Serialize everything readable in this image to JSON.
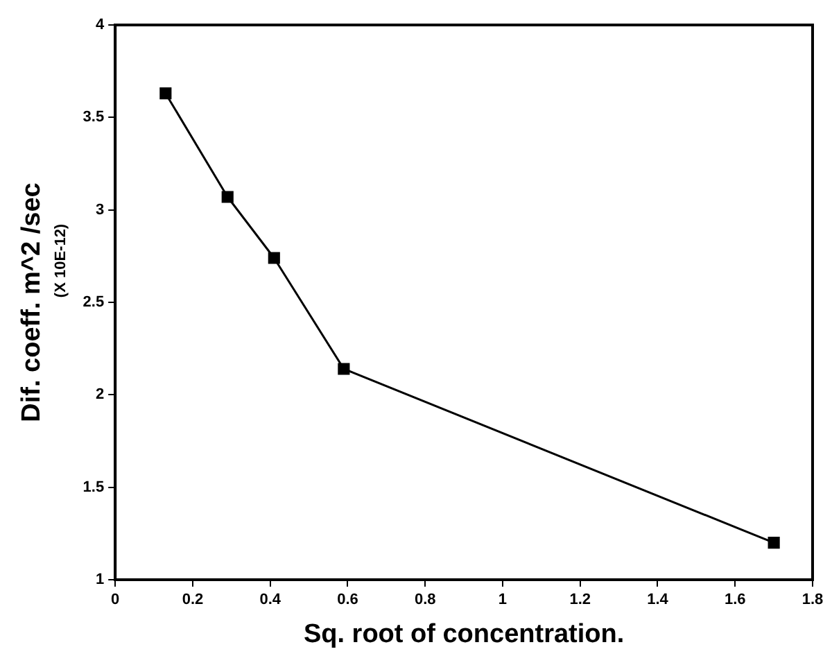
{
  "chart_data": {
    "type": "line",
    "xlabel": "Sq. root of concentration.",
    "ylabel": "Dif. coeff. m^2 /sec",
    "annotations": [
      "(X 10E-12)"
    ],
    "x": [
      0.13,
      0.29,
      0.41,
      0.59,
      1.7
    ],
    "series": [
      {
        "color": "#000000",
        "values": [
          3.63,
          3.07,
          2.74,
          2.14,
          1.2
        ]
      }
    ],
    "xlim": [
      0,
      1.8
    ],
    "xticks": [
      0,
      0.2,
      0.4,
      0.6,
      0.8,
      1,
      1.2,
      1.4,
      1.6,
      1.8
    ],
    "ylim": [
      1,
      4
    ],
    "yticks": [
      1,
      1.5,
      2,
      2.5,
      3,
      3.5,
      4
    ],
    "grid": false,
    "legend": false,
    "marker": "square",
    "line_style": "solid"
  }
}
